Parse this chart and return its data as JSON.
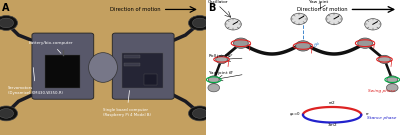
{
  "panel_A_label": "A",
  "panel_B_label": "B",
  "photo_bg": "#c4a060",
  "photo_shadow": "#7a7060",
  "robot_body_color": "#5a5a6a",
  "robot_dark": "#222222",
  "robot_mid": "#888888",
  "robot_light": "#aaaaaa",
  "white_bg": "#ffffff",
  "panel_A_direction": "Direction of motion",
  "panel_B_direction": "Direction of motion",
  "swing_color": "#dd2222",
  "stance_color": "#2222cc",
  "green_color": "#00aa44",
  "blue_line_color": "#4488cc",
  "fig_width": 4.0,
  "fig_height": 1.35,
  "dpi": 100
}
